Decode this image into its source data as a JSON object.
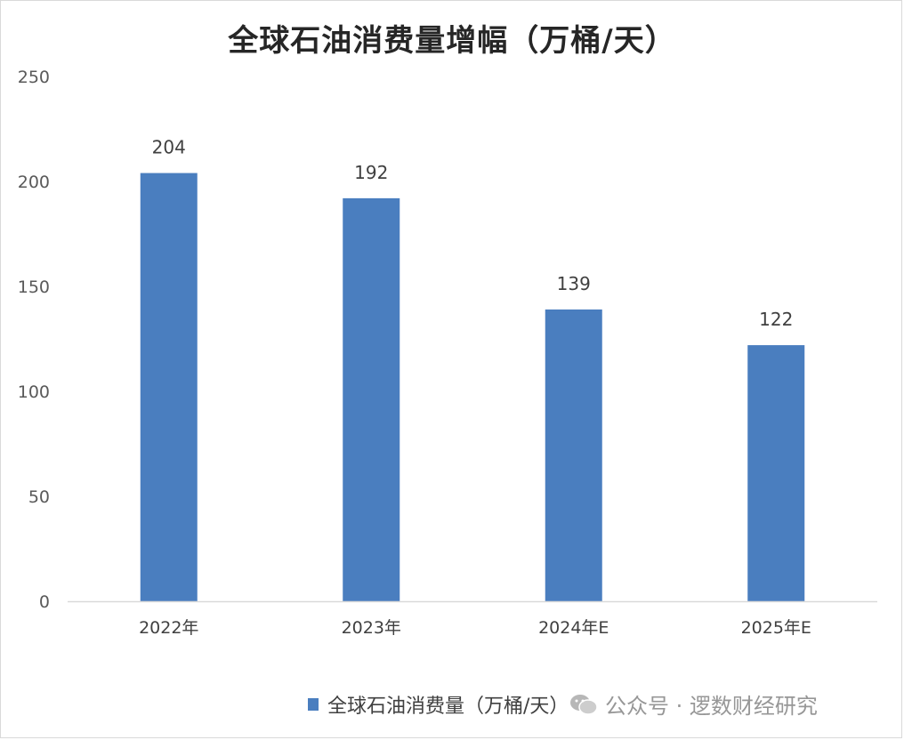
{
  "chart_data": {
    "type": "bar",
    "title": "全球石油消费量增幅（万桶/天）",
    "categories": [
      "2022年",
      "2023年",
      "2024年E",
      "2025年E"
    ],
    "series": [
      {
        "name": "全球石油消费量（万桶/天）",
        "values": [
          204,
          192,
          139,
          122
        ],
        "color": "#4a7ebf"
      }
    ],
    "data_labels": [
      "204",
      "192",
      "139",
      "122"
    ],
    "ylim": [
      0,
      250
    ],
    "yticks": [
      0,
      50,
      100,
      150,
      200,
      250
    ],
    "ytick_labels": [
      "0",
      "50",
      "100",
      "150",
      "200",
      "250"
    ],
    "grid": false,
    "legend_position": "bottom"
  },
  "watermark": {
    "text": "公众号 · 逻数财经研究",
    "icon": "wechat-icon"
  }
}
